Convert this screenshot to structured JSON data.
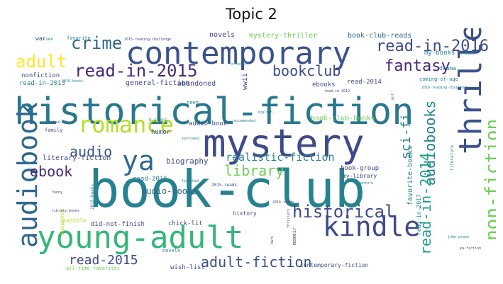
{
  "title": "Topic 2",
  "palette": {
    "purple": "#482878",
    "indigo": "#3e4a89",
    "blue": "#31688e",
    "teal": "#26828e",
    "green": "#1f9e89",
    "mint": "#35b779",
    "lime": "#6ece58",
    "yellow": "#b5de2b",
    "gold": "#fde725"
  },
  "words": [
    {
      "text": "book-club",
      "color": "#26828e"
    },
    {
      "text": "historical-fiction",
      "color": "#2a788e"
    },
    {
      "text": "mystery",
      "color": "#3e4a89"
    },
    {
      "text": "contemporary",
      "color": "#3b528b"
    },
    {
      "text": "young-adult",
      "color": "#35b779"
    },
    {
      "text": "kindle",
      "color": "#3e4a89"
    },
    {
      "text": "thriller",
      "color": "#3b528b"
    },
    {
      "text": "audiobook",
      "color": "#31688e"
    },
    {
      "text": "romance",
      "color": "#b5de2b"
    },
    {
      "text": "ya",
      "color": "#31688e"
    },
    {
      "text": "read-in-2015",
      "color": "#482878"
    },
    {
      "text": "historical",
      "color": "#3e4a89"
    },
    {
      "text": "non-fiction",
      "color": "#6ece58"
    },
    {
      "text": "read-in-2016",
      "color": "#3e4a89"
    },
    {
      "text": "audiobooks",
      "color": "#26828e"
    },
    {
      "text": "read-in-2014",
      "color": "#1f9e89"
    },
    {
      "text": "fantasy",
      "color": "#482878"
    },
    {
      "text": "adult",
      "color": "#fde725"
    },
    {
      "text": "crime",
      "color": "#31688e"
    },
    {
      "text": "bookclub",
      "color": "#3e4a89"
    },
    {
      "text": "library",
      "color": "#6ece58"
    },
    {
      "text": "adult-fiction",
      "color": "#3b528b"
    },
    {
      "text": "ebook",
      "color": "#482878"
    },
    {
      "text": "audio",
      "color": "#3b528b"
    },
    {
      "text": "sci-fi",
      "color": "#26828e"
    },
    {
      "text": "read-2015",
      "color": "#3e4a89"
    },
    {
      "text": "realistic-fiction",
      "color": "#26828e"
    },
    {
      "text": "audio-books",
      "color": "#31688e"
    },
    {
      "text": "biography",
      "color": "#3b528b"
    },
    {
      "text": "literary-fiction",
      "color": "#3e4a89"
    },
    {
      "text": "abandoned",
      "color": "#3e4a89"
    },
    {
      "text": "general-fiction",
      "color": "#3e4a89"
    },
    {
      "text": "book-club-reads",
      "color": "#31688e"
    },
    {
      "text": "mystery-thriller",
      "color": "#6ece58"
    },
    {
      "text": "novels",
      "color": "#3e4a89"
    },
    {
      "text": "nonfiction",
      "color": "#3e4a89"
    },
    {
      "text": "read-in-2013",
      "color": "#26828e"
    },
    {
      "text": "favorite",
      "color": "#26828e"
    },
    {
      "text": "war",
      "color": "#3e4a89"
    },
    {
      "text": "i-own",
      "color": "#26828e"
    },
    {
      "text": "2015-reading-challenge",
      "color": "#3e4a89"
    },
    {
      "text": "my-books",
      "color": "#26828e"
    },
    {
      "text": "e-book",
      "color": "#26828e"
    },
    {
      "text": "drama",
      "color": "#26828e"
    },
    {
      "text": "coming-of-age",
      "color": "#26828e"
    },
    {
      "text": "2016-reading-challenge",
      "color": "#26828e"
    },
    {
      "text": "ebooks",
      "color": "#3e4a89"
    },
    {
      "text": "read-2014",
      "color": "#3e4a89"
    },
    {
      "text": "read-in-2012",
      "color": "#3e4a89"
    },
    {
      "text": "wwii",
      "color": "#3e4a89"
    },
    {
      "text": "e-books",
      "color": "#26828e"
    },
    {
      "text": "2016-books",
      "color": "#26828e"
    },
    {
      "text": "teen",
      "color": "#26828e"
    },
    {
      "text": "book-club-books",
      "color": "#6ece58"
    },
    {
      "text": "recommended",
      "color": "#26828e"
    },
    {
      "text": "english",
      "color": "#26828e"
    },
    {
      "text": "audio-book",
      "color": "#3e4a89"
    },
    {
      "text": "humor",
      "color": "#3e4a89"
    },
    {
      "text": "family",
      "color": "#3e4a89"
    },
    {
      "text": "5-stars",
      "color": "#26828e"
    },
    {
      "text": "borrowed",
      "color": "#26828e"
    },
    {
      "text": "book-group",
      "color": "#3e4a89"
    },
    {
      "text": "read-2016",
      "color": "#26828e"
    },
    {
      "text": "favorite-books",
      "color": "#26828e"
    },
    {
      "text": "literature",
      "color": "#26828e"
    },
    {
      "text": "2015-reads",
      "color": "#3e4a89"
    },
    {
      "text": "2016-reads",
      "color": "#3e4a89"
    },
    {
      "text": "history",
      "color": "#3e4a89"
    },
    {
      "text": "suspense",
      "color": "#b5de2b"
    },
    {
      "text": "audible",
      "color": "#b5de2b"
    },
    {
      "text": "did-not-finish",
      "color": "#3e4a89"
    },
    {
      "text": "chick-lit",
      "color": "#3e4a89"
    },
    {
      "text": "wish-list",
      "color": "#3e4a89"
    },
    {
      "text": "novels",
      "color": "#26828e"
    },
    {
      "text": "memoir",
      "color": "#3e4a89"
    },
    {
      "text": "contemporary-fiction",
      "color": "#3e4a89"
    },
    {
      "text": "my-library",
      "color": "#3e4a89"
    },
    {
      "text": "all-time-favorites",
      "color": "#6ece58"
    },
    {
      "text": "ya-fiction",
      "color": "#3e4a89"
    },
    {
      "text": "funny",
      "color": "#3e4a89"
    },
    {
      "text": "library-books",
      "color": "#3e4a89"
    },
    {
      "text": "adventure",
      "color": "#26828e"
    },
    {
      "text": "2015-books",
      "color": "#26828e"
    },
    {
      "text": "finished",
      "color": "#26828e"
    },
    {
      "text": "default",
      "color": "#3e4a89"
    },
    {
      "text": "read-in-2017",
      "color": "#26828e"
    },
    {
      "text": "john-green",
      "color": "#26828e"
    },
    {
      "text": "thrillers",
      "color": "#3e4a89"
    },
    {
      "text": "dark",
      "color": "#3e4a89"
    },
    {
      "text": "dnf",
      "color": "#3e4a89"
    }
  ]
}
